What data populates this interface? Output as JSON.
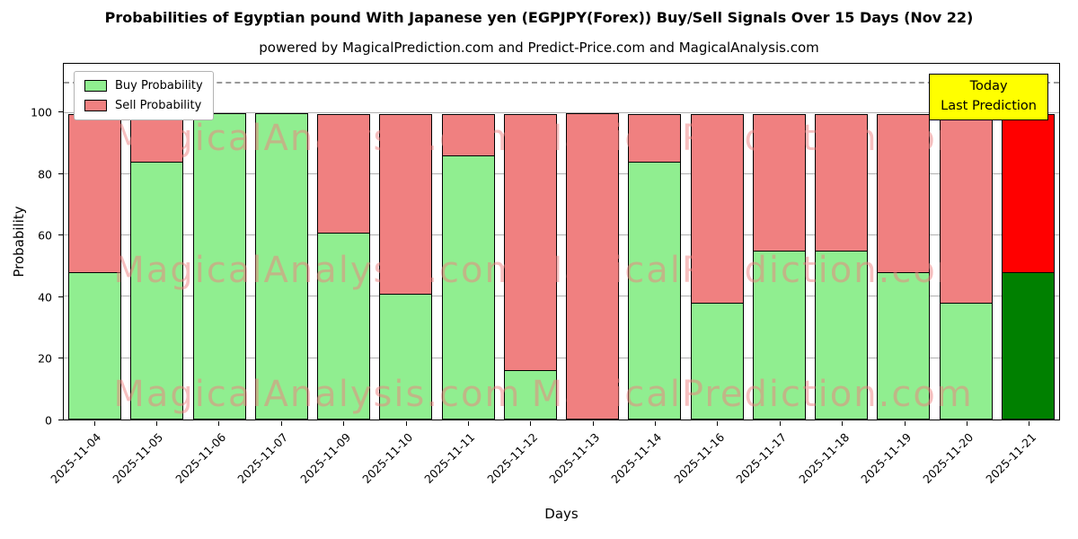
{
  "title": "Probabilities of Egyptian pound With Japanese yen (EGPJPY(Forex)) Buy/Sell Signals Over 15 Days (Nov 22)",
  "subtitle": "powered by MagicalPrediction.com and Predict-Price.com and MagicalAnalysis.com",
  "annotation": {
    "line1": "Today",
    "line2": "Last Prediction",
    "bg_color": "#ffff00"
  },
  "legend": [
    {
      "label": "Buy Probability",
      "color": "#90ee90"
    },
    {
      "label": "Sell Probability",
      "color": "#f08080"
    }
  ],
  "watermarks": [
    "MagicalAnalysis.com",
    "MagicalPrediction.com"
  ],
  "chart_data": {
    "type": "bar",
    "stacked": true,
    "title": "Probabilities of Egyptian pound With Japanese yen (EGPJPY(Forex)) Buy/Sell Signals Over 15 Days (Nov 22)",
    "xlabel": "Days",
    "ylabel": "Probability",
    "ylim": [
      0,
      116
    ],
    "yticks": [
      0,
      20,
      40,
      60,
      80,
      100
    ],
    "dashed_line_y": 110,
    "grid": true,
    "legend_position": "upper left",
    "categories": [
      "2025-11-04",
      "2025-11-05",
      "2025-11-06",
      "2025-11-07",
      "2025-11-09",
      "2025-11-10",
      "2025-11-11",
      "2025-11-12",
      "2025-11-13",
      "2025-11-14",
      "2025-11-16",
      "2025-11-17",
      "2025-11-18",
      "2025-11-19",
      "2025-11-20",
      "2025-11-21"
    ],
    "series": [
      {
        "name": "Buy Probability",
        "color": "#90ee90",
        "values": [
          48,
          84,
          100,
          100,
          61,
          41,
          86,
          16,
          0,
          84,
          38,
          55,
          55,
          48,
          38,
          48
        ]
      },
      {
        "name": "Sell Probability",
        "color": "#f08080",
        "values": [
          52,
          16,
          0,
          0,
          39,
          59,
          14,
          84,
          100,
          16,
          62,
          45,
          45,
          52,
          62,
          52
        ]
      }
    ],
    "today_bar": {
      "index": 15,
      "buy_color": "#008000",
      "sell_color": "#ff0000"
    }
  }
}
